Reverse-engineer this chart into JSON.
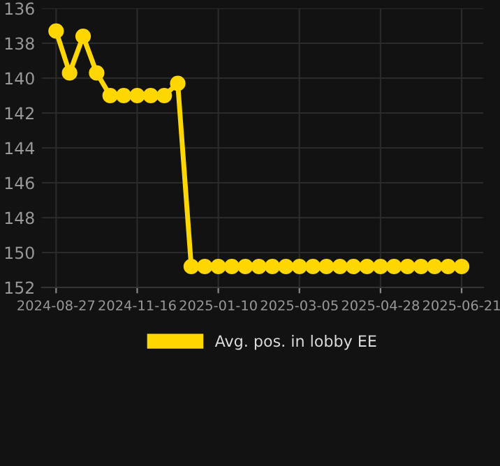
{
  "chart_data": {
    "type": "line",
    "categories": [
      "2024-08-27",
      null,
      null,
      null,
      null,
      null,
      "2024-11-16",
      null,
      null,
      null,
      null,
      null,
      "2025-01-10",
      null,
      null,
      null,
      null,
      null,
      "2025-03-05",
      null,
      null,
      null,
      null,
      null,
      "2025-04-28",
      null,
      null,
      null,
      null,
      null,
      "2025-06-21"
    ],
    "series": [
      {
        "name": "Avg. pos. in lobby EE",
        "color": "#ffd700",
        "values": [
          137.3,
          139.7,
          137.6,
          139.7,
          141.0,
          141.0,
          141.0,
          141.0,
          141.0,
          140.3,
          150.8,
          150.8,
          150.8,
          150.8,
          150.8,
          150.8,
          150.8,
          150.8,
          150.8,
          150.8,
          150.8,
          150.8,
          150.8,
          150.8,
          150.8,
          150.8,
          150.8,
          150.8,
          150.8,
          150.8,
          150.8
        ]
      }
    ],
    "ylim": [
      152,
      136
    ],
    "yticks": [
      136,
      138,
      140,
      142,
      144,
      146,
      148,
      150,
      152
    ],
    "grid": true,
    "legend": "bottom",
    "marker": "circle",
    "line_style": "solid"
  }
}
